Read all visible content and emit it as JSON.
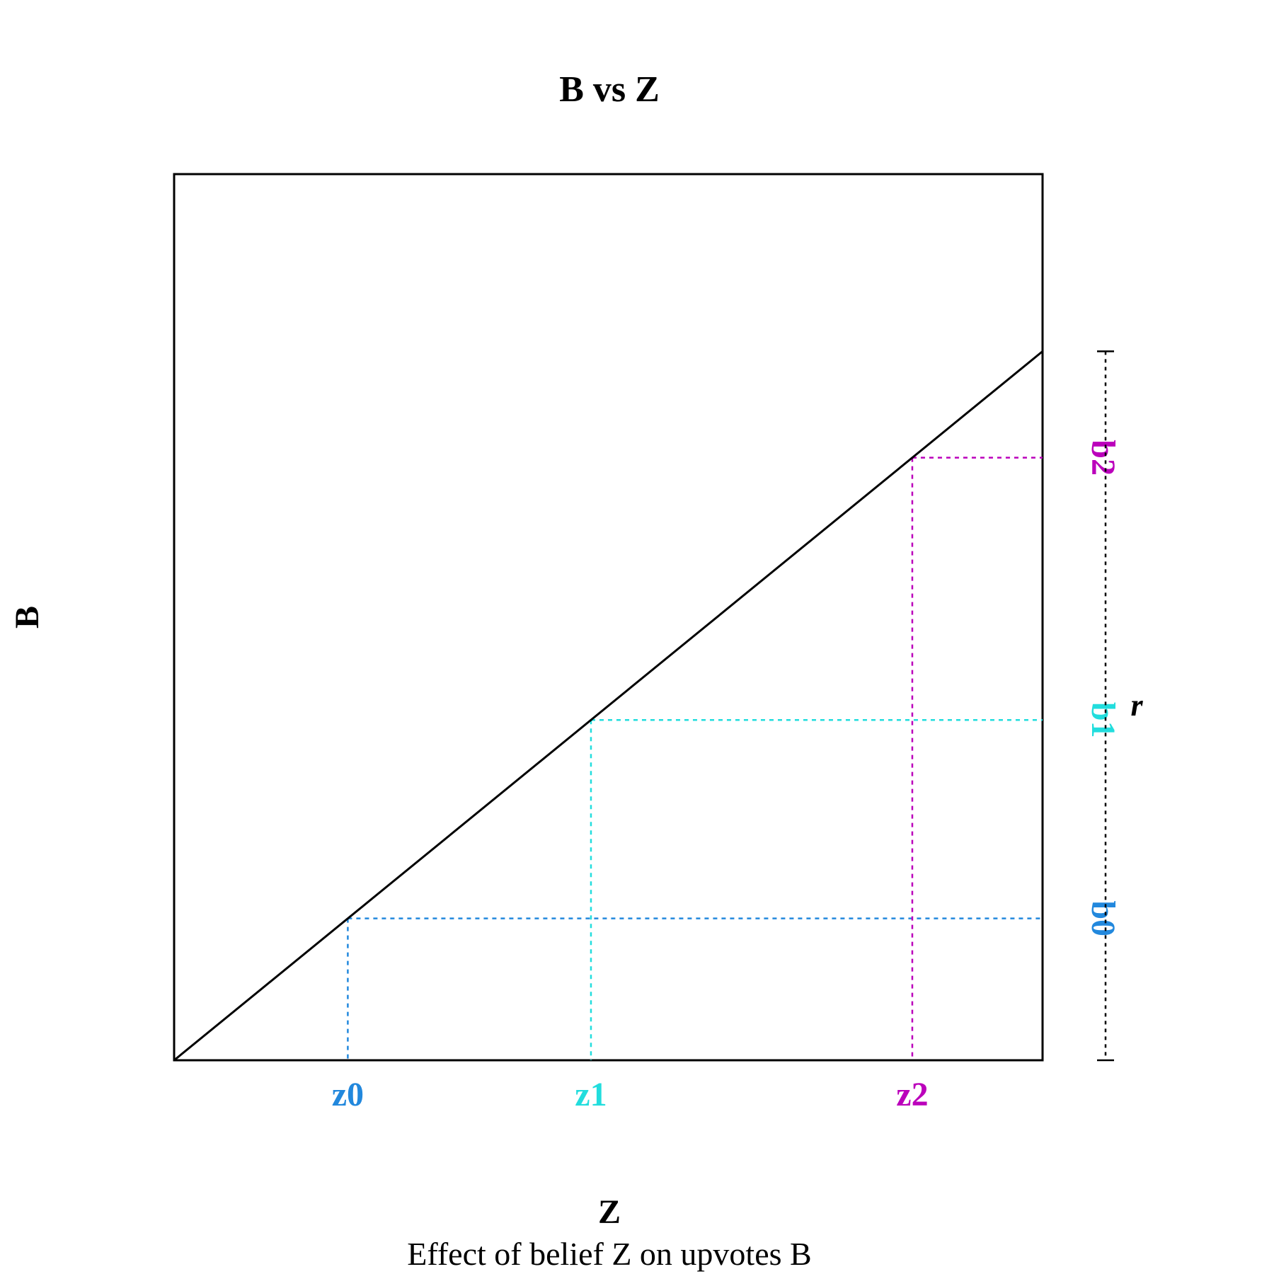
{
  "chart_data": {
    "type": "line",
    "title": "B vs Z",
    "xlabel": "Z",
    "ylabel": "B",
    "caption": "Effect of belief Z on upvotes B",
    "xlim": [
      0,
      1
    ],
    "ylim": [
      0,
      1
    ],
    "grid": false,
    "line": {
      "x": [
        0,
        1
      ],
      "y": [
        0,
        0.8
      ],
      "color": "#000000"
    },
    "markers": [
      {
        "x_label": "z0",
        "y_label": "b0",
        "x": 0.2,
        "y": 0.16,
        "color": "#2288dd"
      },
      {
        "x_label": "z1",
        "y_label": "b1",
        "x": 0.48,
        "y": 0.384,
        "color": "#22dddd"
      },
      {
        "x_label": "z2",
        "y_label": "b2",
        "x": 0.85,
        "y": 0.68,
        "color": "#bb00bb"
      }
    ],
    "range_bracket": {
      "label": "r",
      "from": 0,
      "to": 0.8
    }
  }
}
